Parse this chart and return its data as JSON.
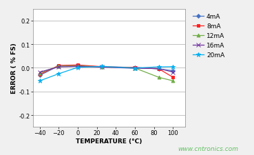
{
  "xlabel": "TEMPERATURE (°C)",
  "ylabel": "ERROR ( % FS)",
  "watermark": "www.cntronics.com",
  "xlim": [
    -47,
    113
  ],
  "ylim": [
    -0.25,
    0.25
  ],
  "xticks": [
    -40,
    -20,
    0,
    20,
    40,
    60,
    80,
    100
  ],
  "yticks": [
    -0.2,
    -0.1,
    0.0,
    0.1,
    0.2
  ],
  "temperature": [
    -40,
    -20,
    0,
    25,
    60,
    85,
    100
  ],
  "series": [
    {
      "label": "4mA",
      "color": "#4472C4",
      "marker": "D",
      "markersize": 3,
      "values": [
        -0.032,
        0.008,
        0.01,
        0.004,
        0.002,
        -0.005,
        -0.012
      ]
    },
    {
      "label": "8mA",
      "color": "#FF2020",
      "marker": "s",
      "markersize": 3,
      "values": [
        -0.028,
        0.01,
        0.012,
        0.005,
        0.001,
        -0.004,
        -0.04
      ]
    },
    {
      "label": "12mA",
      "color": "#70AD47",
      "marker": "^",
      "markersize": 3.5,
      "values": [
        -0.022,
        0.007,
        0.008,
        0.004,
        -0.001,
        -0.04,
        -0.055
      ]
    },
    {
      "label": "16mA",
      "color": "#7030A0",
      "marker": "x",
      "markersize": 4,
      "values": [
        -0.018,
        0.004,
        0.006,
        0.003,
        -0.002,
        -0.003,
        -0.018
      ]
    },
    {
      "label": "20mA",
      "color": "#00B0F0",
      "marker": "*",
      "markersize": 4.5,
      "values": [
        -0.055,
        -0.025,
        0.002,
        0.006,
        -0.001,
        0.004,
        0.005
      ]
    }
  ],
  "background_color": "#F0F0F0",
  "plot_bg_color": "#FFFFFF",
  "grid_color": "#AAAAAA",
  "legend_fontsize": 6.5,
  "axis_label_fontsize": 6.5,
  "tick_fontsize": 6
}
